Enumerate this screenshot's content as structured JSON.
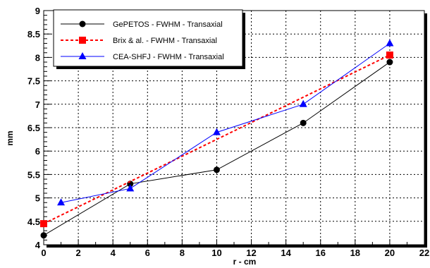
{
  "chart_data": {
    "type": "line",
    "xlabel": "r - cm",
    "ylabel": "mm",
    "xlim": [
      0,
      22
    ],
    "ylim": [
      4,
      9
    ],
    "x_ticks": [
      0,
      2,
      4,
      6,
      8,
      10,
      12,
      14,
      16,
      18,
      20,
      22
    ],
    "y_ticks": [
      4,
      4.5,
      5,
      5.5,
      6,
      6.5,
      7,
      7.5,
      8,
      8.5,
      9
    ],
    "y_tick_labels": [
      "4",
      "4.5",
      "5",
      "5.5",
      "6",
      "6.5",
      "7",
      "7.5",
      "8",
      "8.5",
      "9"
    ],
    "grid": true,
    "legend_position": "top-left",
    "series": [
      {
        "name": "GePETOS - FWHM - Transaxial",
        "color": "#000000",
        "line_style": "solid",
        "marker": "circle",
        "x": [
          0,
          5,
          10,
          15,
          20
        ],
        "y": [
          4.2,
          5.3,
          5.6,
          6.6,
          7.9
        ]
      },
      {
        "name": "Brix & al. - FWHM - Transaxial",
        "color": "#ff0000",
        "line_style": "dashed",
        "marker": "square",
        "x": [
          0,
          20
        ],
        "y": [
          4.45,
          8.05
        ]
      },
      {
        "name": "CEA-SHFJ - FWHM - Transaxial",
        "color": "#0000ff",
        "line_style": "solid",
        "marker": "triangle",
        "x": [
          1,
          5,
          10,
          15,
          20
        ],
        "y": [
          4.9,
          5.2,
          6.4,
          7.0,
          8.3
        ]
      }
    ]
  }
}
